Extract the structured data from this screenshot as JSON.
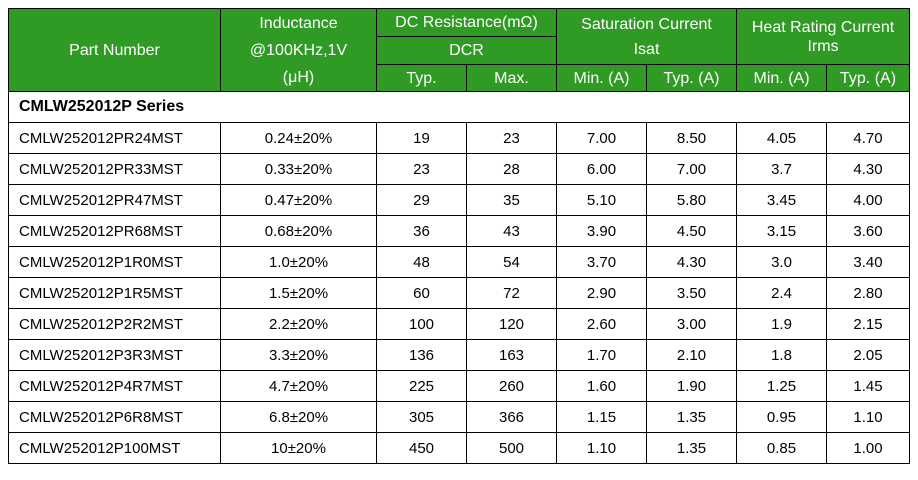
{
  "header": {
    "part_number": "Part Number",
    "inductance_line1": "Inductance",
    "inductance_line2": "@100KHz,1V",
    "inductance_line3": "(μH)",
    "dcr_line1": "DC Resistance(mΩ)",
    "dcr_line2": "DCR",
    "isat_line1": "Saturation Current",
    "isat_line2": "Isat",
    "irms_line1": "Heat Rating Current",
    "irms_line2": "Irms",
    "sub_typ": "Typ.",
    "sub_max": "Max.",
    "sub_min_a": "Min. (A)",
    "sub_typ_a": "Typ. (A)"
  },
  "series_title": "CMLW252012P Series",
  "rows": [
    {
      "part": "CMLW252012PR24MST",
      "inductance": "0.24±20%",
      "dcr_typ": "19",
      "dcr_max": "23",
      "isat_min": "7.00",
      "isat_typ": "8.50",
      "irms_min": "4.05",
      "irms_typ": "4.70"
    },
    {
      "part": "CMLW252012PR33MST",
      "inductance": "0.33±20%",
      "dcr_typ": "23",
      "dcr_max": "28",
      "isat_min": "6.00",
      "isat_typ": "7.00",
      "irms_min": "3.7",
      "irms_typ": "4.30"
    },
    {
      "part": "CMLW252012PR47MST",
      "inductance": "0.47±20%",
      "dcr_typ": "29",
      "dcr_max": "35",
      "isat_min": "5.10",
      "isat_typ": "5.80",
      "irms_min": "3.45",
      "irms_typ": "4.00"
    },
    {
      "part": "CMLW252012PR68MST",
      "inductance": "0.68±20%",
      "dcr_typ": "36",
      "dcr_max": "43",
      "isat_min": "3.90",
      "isat_typ": "4.50",
      "irms_min": "3.15",
      "irms_typ": "3.60"
    },
    {
      "part": "CMLW252012P1R0MST",
      "inductance": "1.0±20%",
      "dcr_typ": "48",
      "dcr_max": "54",
      "isat_min": "3.70",
      "isat_typ": "4.30",
      "irms_min": "3.0",
      "irms_typ": "3.40"
    },
    {
      "part": "CMLW252012P1R5MST",
      "inductance": "1.5±20%",
      "dcr_typ": "60",
      "dcr_max": "72",
      "isat_min": "2.90",
      "isat_typ": "3.50",
      "irms_min": "2.4",
      "irms_typ": "2.80"
    },
    {
      "part": "CMLW252012P2R2MST",
      "inductance": "2.2±20%",
      "dcr_typ": "100",
      "dcr_max": "120",
      "isat_min": "2.60",
      "isat_typ": "3.00",
      "irms_min": "1.9",
      "irms_typ": "2.15"
    },
    {
      "part": "CMLW252012P3R3MST",
      "inductance": "3.3±20%",
      "dcr_typ": "136",
      "dcr_max": "163",
      "isat_min": "1.70",
      "isat_typ": "2.10",
      "irms_min": "1.8",
      "irms_typ": "2.05"
    },
    {
      "part": "CMLW252012P4R7MST",
      "inductance": "4.7±20%",
      "dcr_typ": "225",
      "dcr_max": "260",
      "isat_min": "1.60",
      "isat_typ": "1.90",
      "irms_min": "1.25",
      "irms_typ": "1.45"
    },
    {
      "part": "CMLW252012P6R8MST",
      "inductance": "6.8±20%",
      "dcr_typ": "305",
      "dcr_max": "366",
      "isat_min": "1.15",
      "isat_typ": "1.35",
      "irms_min": "0.95",
      "irms_typ": "1.10"
    },
    {
      "part": "CMLW252012P100MST",
      "inductance": "10±20%",
      "dcr_typ": "450",
      "dcr_max": "500",
      "isat_min": "1.10",
      "isat_typ": "1.35",
      "irms_min": "0.85",
      "irms_typ": "1.00"
    }
  ],
  "colors": {
    "header_bg": "#2f9a24",
    "header_text": "#ffffff",
    "border": "#000000"
  }
}
